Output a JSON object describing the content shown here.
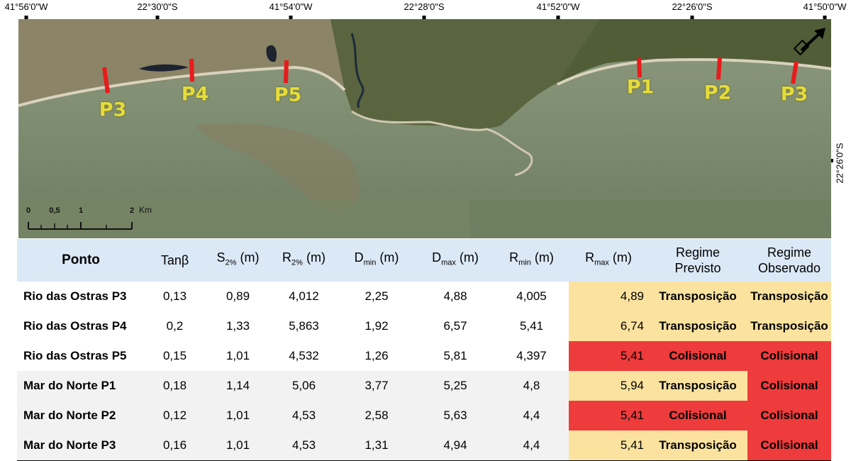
{
  "coords": {
    "top": [
      "41°56'0\"W",
      "22°30'0\"S",
      "41°54'0\"W",
      "22°28'0\"S",
      "41°52'0\"W",
      "22°26'0\"S",
      "41°50'0\"W"
    ],
    "right": "22°26'0\"S"
  },
  "map": {
    "labels": [
      "P3",
      "P4",
      "P5",
      "P1",
      "P2",
      "P3"
    ],
    "scale": {
      "ticks": [
        "0",
        "0,5",
        "1",
        "2"
      ],
      "unit": "Km"
    },
    "colors": {
      "marker": "#e81c1c",
      "label": "#e6dc3a",
      "sea": "#7a8a6a",
      "land": "#4f5a35"
    }
  },
  "table": {
    "headers": {
      "ponto": "Ponto",
      "tan": "Tanβ",
      "s_base": "S",
      "s_sub": "2%",
      "s_unit": " (m)",
      "r_base": "R",
      "r_sub": "2%",
      "r_unit": " (m)",
      "dmin_base": "D",
      "dmin_sub": "min",
      "dmin_unit": " (m)",
      "dmax_base": "D",
      "dmax_sub": "max",
      "dmax_unit": " (m)",
      "rmin_base": "R",
      "rmin_sub": "min",
      "rmin_unit": " (m)",
      "rmax_base": "R",
      "rmax_sub": "max",
      "rmax_unit": " (m)",
      "prev_1": "Regime",
      "prev_2": "Previsto",
      "obs_1": "Regime",
      "obs_2": "Observado"
    },
    "rows": [
      {
        "name": "Rio das Ostras P3",
        "tan": "0,13",
        "s": "0,89",
        "r2": "4,012",
        "dmin": "2,25",
        "dmax": "4,88",
        "rmin": "4,005",
        "rmax": "4,89",
        "prev": "Transposição",
        "obs": "Transposição"
      },
      {
        "name": "Rio das Ostras P4",
        "tan": "0,2",
        "s": "1,33",
        "r2": "5,863",
        "dmin": "1,92",
        "dmax": "6,57",
        "rmin": "5,41",
        "rmax": "6,74",
        "prev": "Transposição",
        "obs": "Transposição"
      },
      {
        "name": "Rio das Ostras P5",
        "tan": "0,15",
        "s": "1,01",
        "r2": "4,532",
        "dmin": "1,26",
        "dmax": "5,81",
        "rmin": "4,397",
        "rmax": "5,41",
        "prev": "Colisional",
        "obs": "Colisional"
      },
      {
        "name": "Mar do Norte P1",
        "tan": "0,18",
        "s": "1,14",
        "r2": "5,06",
        "dmin": "3,77",
        "dmax": "5,25",
        "rmin": "4,8",
        "rmax": "5,94",
        "prev": "Transposição",
        "obs": "Colisional"
      },
      {
        "name": "Mar do Norte P2",
        "tan": "0,12",
        "s": "1,01",
        "r2": "4,53",
        "dmin": "2,58",
        "dmax": "5,63",
        "rmin": "4,4",
        "rmax": "5,41",
        "prev": "Colisional",
        "obs": "Colisional"
      },
      {
        "name": "Mar do Norte P3",
        "tan": "0,16",
        "s": "1,01",
        "r2": "4,53",
        "dmin": "1,31",
        "dmax": "4,94",
        "rmin": "4,4",
        "rmax": "5,41",
        "prev": "Transposição",
        "obs": "Colisional"
      }
    ]
  }
}
